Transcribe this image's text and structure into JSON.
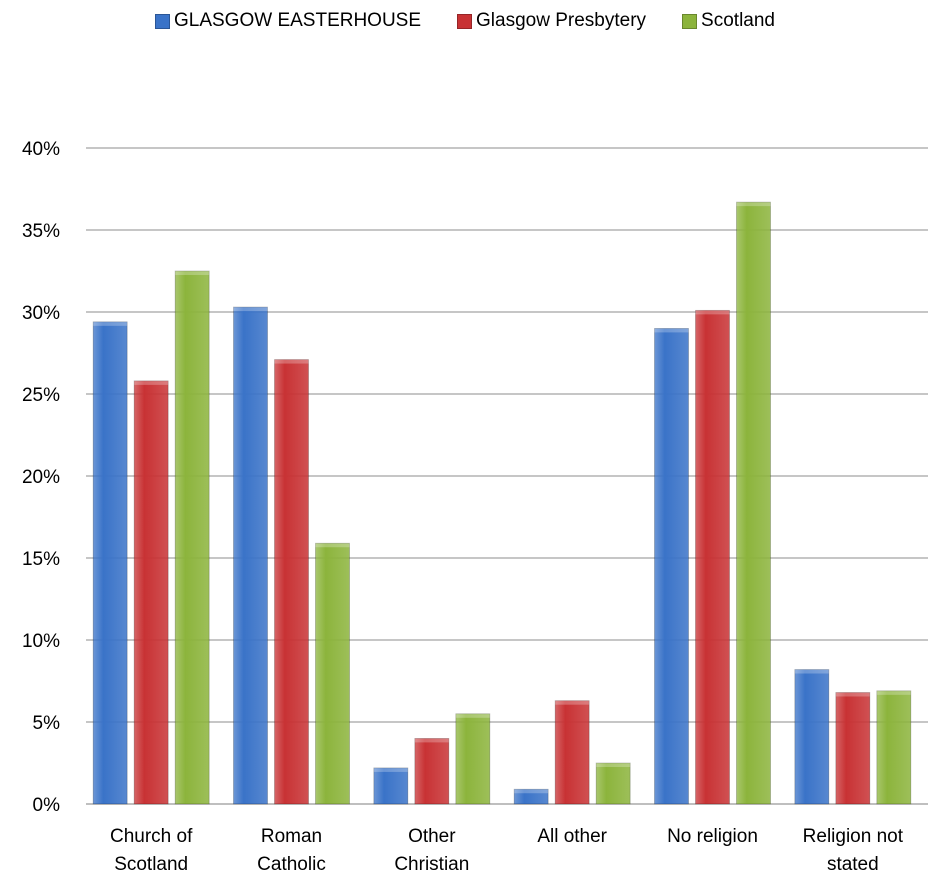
{
  "chart_data": {
    "type": "bar",
    "title": "",
    "xlabel": "",
    "ylabel": "",
    "ylim": [
      0,
      40
    ],
    "y_ticks": [
      "0%",
      "5%",
      "10%",
      "15%",
      "20%",
      "25%",
      "30%",
      "35%",
      "40%"
    ],
    "categories": [
      [
        "Church of",
        "Scotland"
      ],
      [
        "Roman",
        "Catholic"
      ],
      [
        "Other",
        "Christian"
      ],
      [
        "All other"
      ],
      [
        "No religion"
      ],
      [
        "Religion not",
        "stated"
      ]
    ],
    "series": [
      {
        "name": "GLASGOW EASTERHOUSE",
        "color": "#3a73c8",
        "values": [
          29.4,
          30.3,
          2.2,
          0.9,
          29.0,
          8.2
        ]
      },
      {
        "name": "Glasgow Presbytery",
        "color": "#c83234",
        "values": [
          25.8,
          27.1,
          4.0,
          6.3,
          30.1,
          6.8
        ]
      },
      {
        "name": "Scotland",
        "color": "#8cb43c",
        "values": [
          32.5,
          15.9,
          5.5,
          2.5,
          36.7,
          6.9
        ]
      }
    ],
    "grid": true,
    "legend_position": "top"
  }
}
